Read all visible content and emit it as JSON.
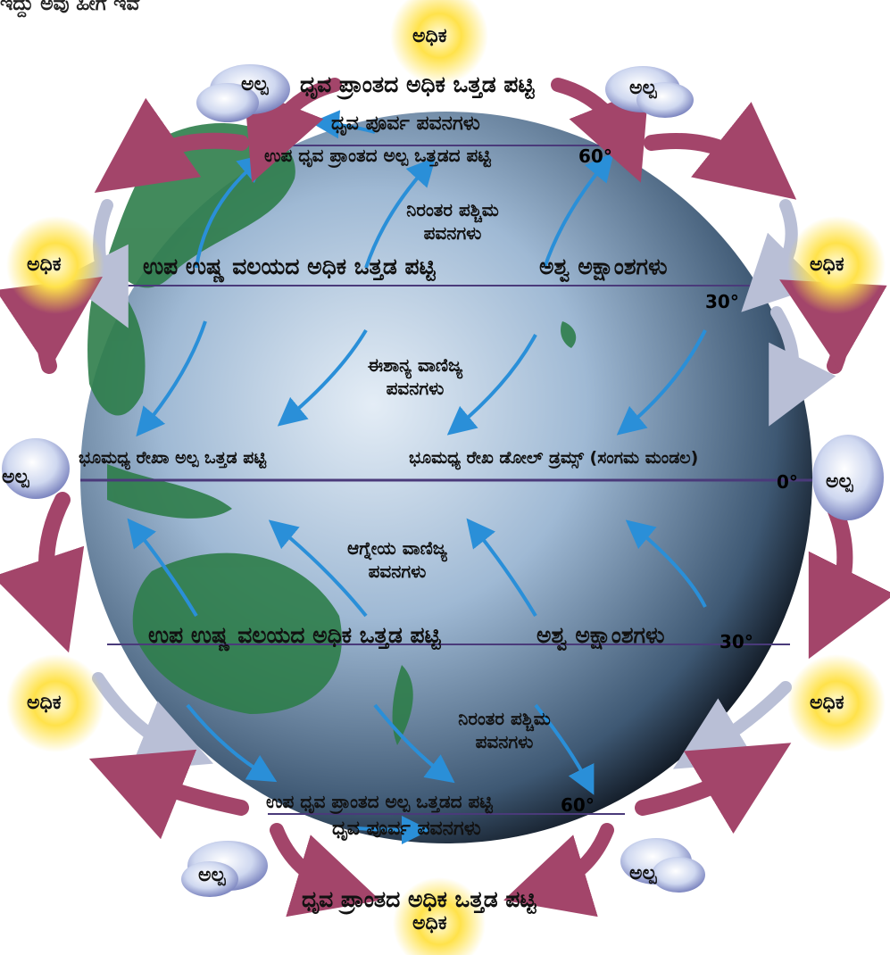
{
  "top_text": "ಇದ್ದು ಅವು ಹೀಗೆ ಇವೆ",
  "high": "ಅಧಿಕ",
  "low": "ಅಲ್ಪ",
  "belts": {
    "polar_high_north": "ಧೃವ ಪ್ರಾಂತದ ಅಧಿಕ ಒತ್ತಡ ಪಟ್ಟಿ",
    "polar_east_north": "ಧೃವ ಪೂರ್ವ ಪವನಗಳು",
    "subpolar_low_north": "ಉಪ ಧೃವ ಪ್ರಾಂತದ ಅಲ್ಪ ಒತ್ತಡದ ಪಟ್ಟಿ",
    "westerlies_north": "ನಿರಂತರ ಪಶ್ಚಿಮ ಪವನಗಳು",
    "subtropical_high_north": "ಉಪ ಉಷ್ಣ ವಲಯದ ಅಧಿಕ ಒತ್ತಡ ಪಟ್ಟಿ",
    "horse_north": "ಅಶ್ವ ಅಕ್ಷಾಂಶಗಳು",
    "ne_trades": "ಈಶಾನ್ಯ ವಾಣಿಜ್ಯ ಪವನಗಳು",
    "equatorial_low": "ಭೂಮಧ್ಯ ರೇಖಾ ಅಲ್ಪ ಒತ್ತಡ ಪಟ್ಟಿ",
    "doldrums": "ಭೂಮಧ್ಯ ರೇಖ ಡೋಲ್ ಡ್ರಮ್ಸ್ (ಸಂಗಮ ಮಂಡಲ)",
    "se_trades": "ಆಗ್ನೇಯ ವಾಣಿಜ್ಯ ಪವನಗಳು",
    "subtropical_high_south": "ಉಪ ಉಷ್ಣ ವಲಯದ ಅಧಿಕ ಒತ್ತಡ ಪಟ್ಟಿ",
    "horse_south": "ಅಶ್ವ ಅಕ್ಷಾಂಶಗಳು",
    "westerlies_south": "ನಿರಂತರ ಪಶ್ಚಿಮ ಪವನಗಳು",
    "subpolar_low_south": "ಉಪ ಧೃವ ಪ್ರಾಂತದ ಅಲ್ಪ ಒತ್ತಡದ ಪಟ್ಟಿ",
    "polar_east_south": "ಧೃವ ಪೂರ್ವ ಪವನಗಳು",
    "polar_high_south": "ಧೃವ ಪ್ರಾಂತದ ಅಧಿಕ ಒತ್ತಡ ಪಟ್ಟಿ"
  },
  "degrees": {
    "d60n": "60°",
    "d30n": "30°",
    "d0": "0°",
    "d30s": "30°",
    "d60s": "60°"
  },
  "colors": {
    "ocean": "#9fb9d4",
    "land": "#2e7d4a",
    "wind_arrow": "#2a8fd8",
    "cell_arrow": "#a3456a",
    "cell_arrow_light": "#b9bfd6",
    "sun": "#ffd93a",
    "cloud": "#c9d4ee"
  }
}
